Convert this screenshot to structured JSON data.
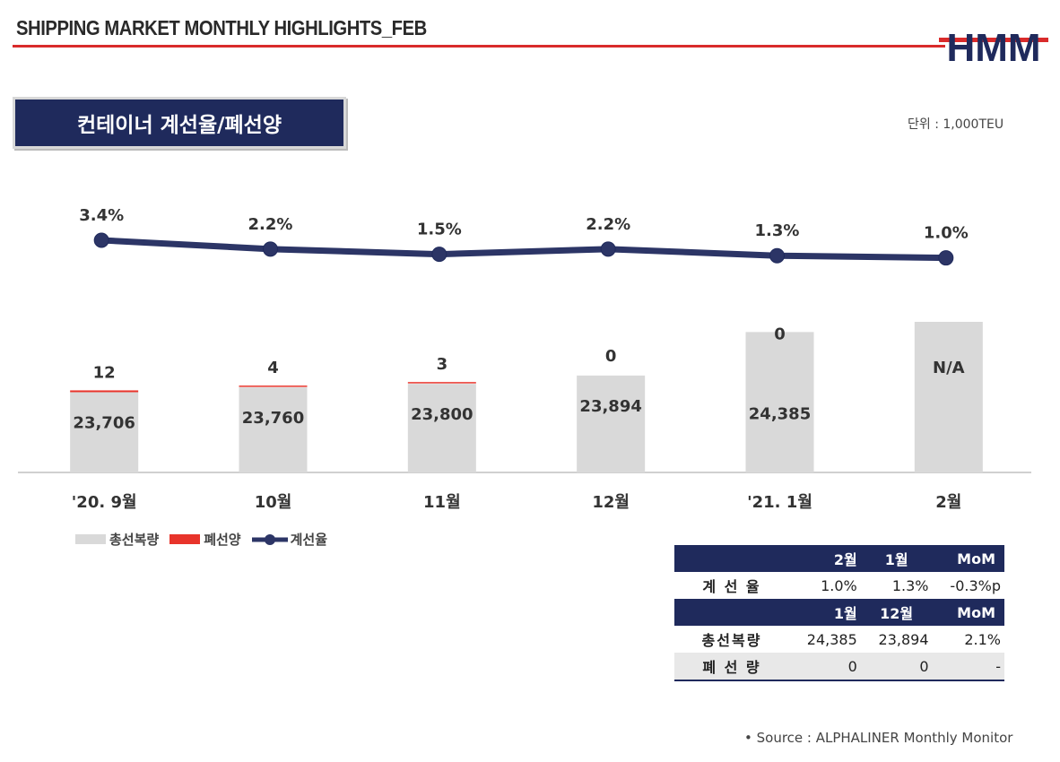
{
  "header": {
    "title": "SHIPPING MARKET MONTHLY HIGHLIGHTS_FEB",
    "logo_text": "HMM"
  },
  "section": {
    "title": "컨테이너 계선율/폐선양",
    "unit": "단위 : 1,000TEU"
  },
  "colors": {
    "navy": "#1f2a5c",
    "red": "#e8342b",
    "gray": "#d9d9d9",
    "accent_red": "#d92b2b"
  },
  "chart_data": {
    "type": "bar",
    "categories": [
      "'20. 9월",
      "10월",
      "11월",
      "12월",
      "'21. 1월",
      "2월"
    ],
    "series": [
      {
        "name": "총선복량",
        "type": "bar",
        "values": [
          23706,
          23760,
          23800,
          23894,
          24385,
          null
        ],
        "labels": [
          "23,706",
          "23,760",
          "23,800",
          "23,894",
          "24,385",
          "N/A"
        ]
      },
      {
        "name": "폐선양",
        "type": "bar-stacked",
        "values": [
          12,
          4,
          3,
          0,
          0,
          null
        ],
        "labels": [
          "12",
          "4",
          "3",
          "0",
          "0",
          ""
        ]
      },
      {
        "name": "계선율",
        "type": "line",
        "values": [
          3.4,
          2.2,
          1.5,
          2.2,
          1.3,
          1.0
        ],
        "labels": [
          "3.4%",
          "2.2%",
          "1.5%",
          "2.2%",
          "1.3%",
          "1.0%"
        ],
        "ylim": [
          -10,
          4.2
        ]
      }
    ],
    "bar_ylim": [
      22800,
      24500
    ],
    "legend": [
      "총선복량",
      "폐선양",
      "계선율"
    ],
    "legend_position": "bottom-left"
  },
  "summary_table": {
    "header1": [
      "",
      "2월",
      "1월",
      "MoM"
    ],
    "row1": [
      "계 선 율",
      "1.0%",
      "1.3%",
      "-0.3%p"
    ],
    "header2": [
      "",
      "1월",
      "12월",
      "MoM"
    ],
    "row2": [
      "총선복량",
      "24,385",
      "23,894",
      "2.1%"
    ],
    "row3": [
      "폐 선 량",
      "0",
      "0",
      "-"
    ]
  },
  "source": "• Source : ALPHALINER Monthly Monitor"
}
